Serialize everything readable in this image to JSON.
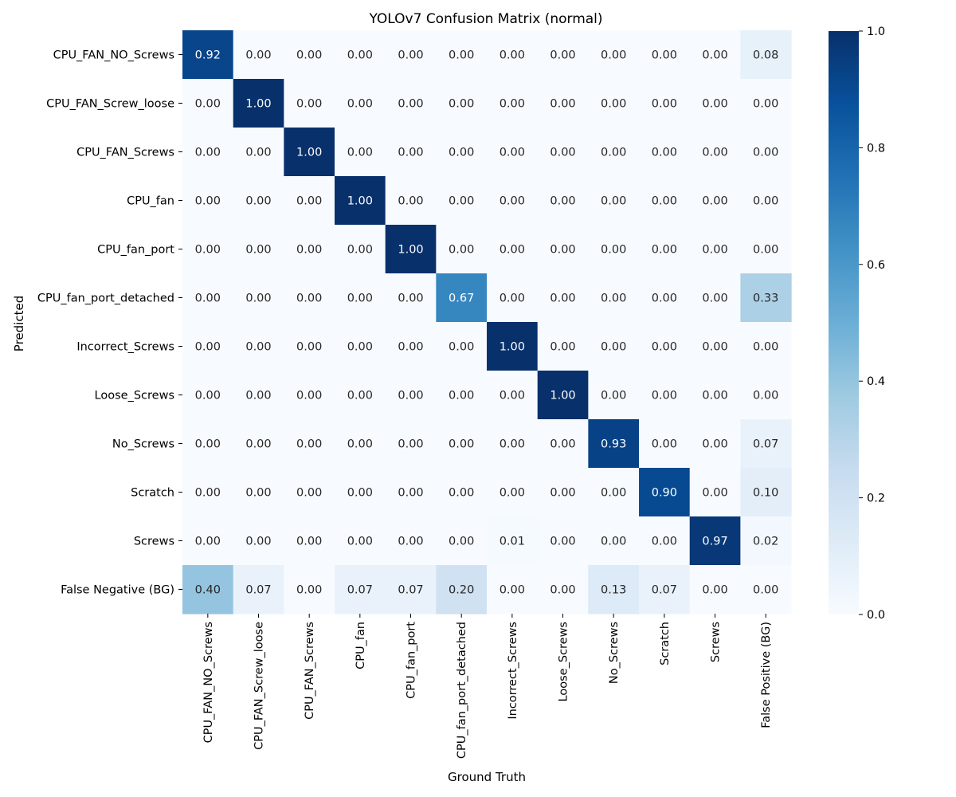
{
  "chart_data": {
    "type": "heatmap",
    "title": "YOLOv7 Confusion Matrix (normal)",
    "xlabel": "Ground Truth",
    "ylabel": "Predicted",
    "row_labels": [
      "CPU_FAN_NO_Screws",
      "CPU_FAN_Screw_loose",
      "CPU_FAN_Screws",
      "CPU_fan",
      "CPU_fan_port",
      "CPU_fan_port_detached",
      "Incorrect_Screws",
      "Loose_Screws",
      "No_Screws",
      "Scratch",
      "Screws",
      "False Negative (BG)"
    ],
    "col_labels": [
      "CPU_FAN_NO_Screws",
      "CPU_FAN_Screw_loose",
      "CPU_FAN_Screws",
      "CPU_fan",
      "CPU_fan_port",
      "CPU_fan_port_detached",
      "Incorrect_Screws",
      "Loose_Screws",
      "No_Screws",
      "Scratch",
      "Screws",
      "False Positive (BG)"
    ],
    "values": [
      [
        0.92,
        0.0,
        0.0,
        0.0,
        0.0,
        0.0,
        0.0,
        0.0,
        0.0,
        0.0,
        0.0,
        0.08
      ],
      [
        0.0,
        1.0,
        0.0,
        0.0,
        0.0,
        0.0,
        0.0,
        0.0,
        0.0,
        0.0,
        0.0,
        0.0
      ],
      [
        0.0,
        0.0,
        1.0,
        0.0,
        0.0,
        0.0,
        0.0,
        0.0,
        0.0,
        0.0,
        0.0,
        0.0
      ],
      [
        0.0,
        0.0,
        0.0,
        1.0,
        0.0,
        0.0,
        0.0,
        0.0,
        0.0,
        0.0,
        0.0,
        0.0
      ],
      [
        0.0,
        0.0,
        0.0,
        0.0,
        1.0,
        0.0,
        0.0,
        0.0,
        0.0,
        0.0,
        0.0,
        0.0
      ],
      [
        0.0,
        0.0,
        0.0,
        0.0,
        0.0,
        0.67,
        0.0,
        0.0,
        0.0,
        0.0,
        0.0,
        0.33
      ],
      [
        0.0,
        0.0,
        0.0,
        0.0,
        0.0,
        0.0,
        1.0,
        0.0,
        0.0,
        0.0,
        0.0,
        0.0
      ],
      [
        0.0,
        0.0,
        0.0,
        0.0,
        0.0,
        0.0,
        0.0,
        1.0,
        0.0,
        0.0,
        0.0,
        0.0
      ],
      [
        0.0,
        0.0,
        0.0,
        0.0,
        0.0,
        0.0,
        0.0,
        0.0,
        0.93,
        0.0,
        0.0,
        0.07
      ],
      [
        0.0,
        0.0,
        0.0,
        0.0,
        0.0,
        0.0,
        0.0,
        0.0,
        0.0,
        0.9,
        0.0,
        0.1
      ],
      [
        0.0,
        0.0,
        0.0,
        0.0,
        0.0,
        0.0,
        0.01,
        0.0,
        0.0,
        0.0,
        0.97,
        0.02
      ],
      [
        0.4,
        0.07,
        0.0,
        0.07,
        0.07,
        0.2,
        0.0,
        0.0,
        0.13,
        0.07,
        0.0,
        0.0
      ]
    ],
    "value_format": "0.00",
    "colormap": "Blues",
    "color_stops": [
      "#f7fbff",
      "#deebf7",
      "#c6dbef",
      "#9ecae1",
      "#6baed6",
      "#4292c6",
      "#2171b5",
      "#08519c",
      "#08306b"
    ],
    "vmin": 0.0,
    "vmax": 1.0,
    "colorbar_ticks": [
      0.0,
      0.2,
      0.4,
      0.6,
      0.8,
      1.0
    ],
    "colorbar_tick_labels": [
      "0.0",
      "0.2",
      "0.4",
      "0.6",
      "0.8",
      "1.0"
    ],
    "colorbar_position": "right",
    "annot_light_color": "#ffffff",
    "annot_dark_color": "#262626",
    "text_color": "#000000"
  }
}
